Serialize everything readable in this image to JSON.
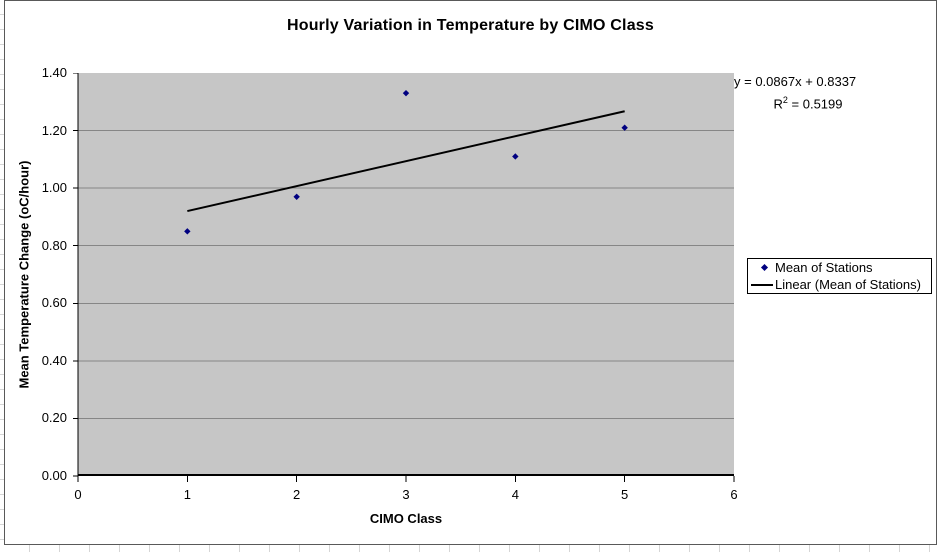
{
  "chart": {
    "equation": {
      "line1": "y = 0.0867x + 0.8337",
      "r_label": "R",
      "r_sup": "2",
      "r_rest": " = 0.5199"
    },
    "legend": {
      "items": [
        {
          "label": "Mean of Stations",
          "marker": "diamond"
        },
        {
          "label": "Linear (Mean of Stations)",
          "marker": "line"
        }
      ]
    }
  },
  "chart_data": {
    "type": "scatter",
    "title": "Hourly Variation in Temperature by CIMO Class",
    "xlabel": "CIMO Class",
    "ylabel": "Mean Temperature Change (oC/hour)",
    "series": [
      {
        "name": "Mean of Stations",
        "x": [
          1,
          2,
          3,
          4,
          5
        ],
        "y": [
          0.85,
          0.97,
          1.33,
          1.11,
          1.21
        ]
      }
    ],
    "x_axis": {
      "label": "CIMO Class",
      "min": 0,
      "max": 6,
      "ticks": [
        0,
        1,
        2,
        3,
        4,
        5,
        6
      ],
      "tick_labels": [
        "0",
        "1",
        "2",
        "3",
        "4",
        "5",
        "6"
      ]
    },
    "y_axis": {
      "label": "Mean Temperature Change (oC/hour)",
      "min": 0,
      "max": 1.4,
      "ticks": [
        0,
        0.2,
        0.4,
        0.6,
        0.8,
        1.0,
        1.2,
        1.4
      ],
      "tick_labels": [
        "0.00",
        "0.20",
        "0.40",
        "0.60",
        "0.80",
        "1.00",
        "1.20",
        "1.40"
      ]
    },
    "trendline": {
      "type": "linear",
      "slope": 0.0867,
      "intercept": 0.8337,
      "r_squared": 0.5199,
      "x_start": 1,
      "x_end": 5,
      "equation_text": "y = 0.0867x + 0.8337",
      "r_squared_text": "R2 = 0.5199"
    },
    "grid": true,
    "legend_position": "right",
    "plot_background": "#c6c6c6",
    "colors": {
      "marker": "#000080",
      "trendline": "#000000",
      "gridline": "#868686",
      "axis": "#000000"
    }
  }
}
